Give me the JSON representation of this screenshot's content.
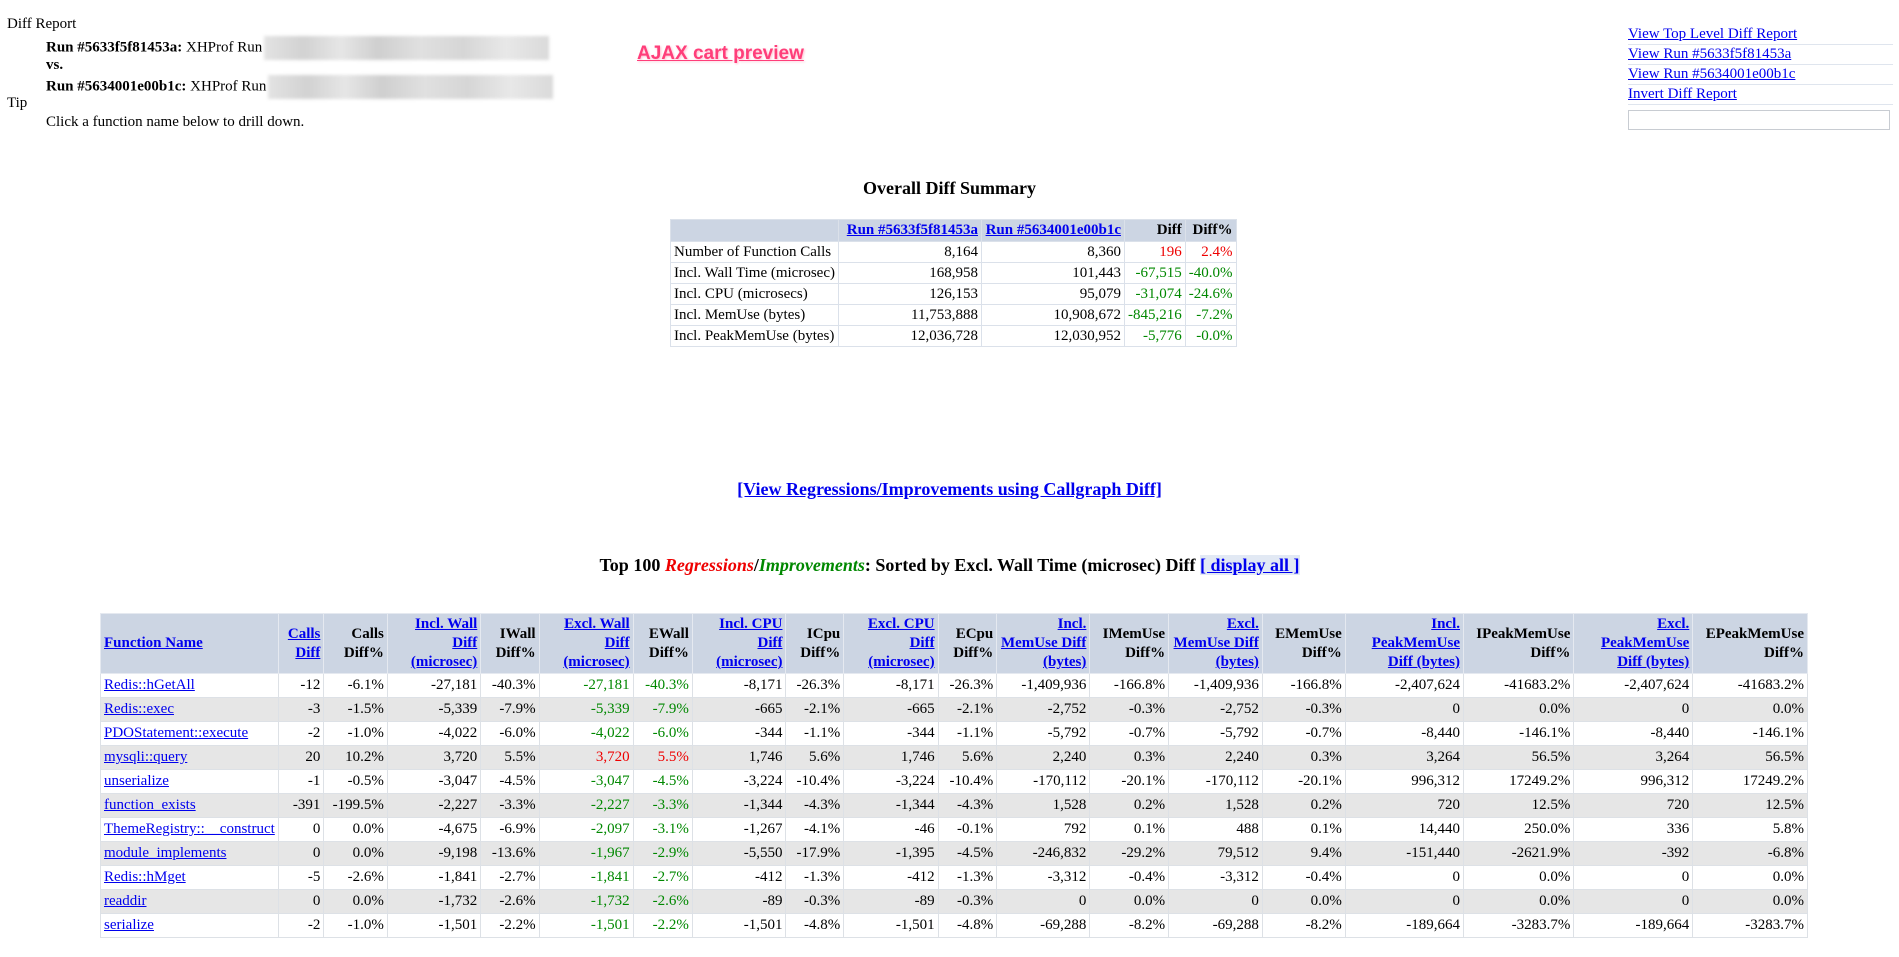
{
  "header": {
    "title": "Diff Report",
    "run1_label": "Run #5633f5f81453a:",
    "run1_desc": "XHProf Run",
    "vs": "vs.",
    "run2_label": "Run #5634001e00b1c:",
    "run2_desc": "XHProf Run",
    "tip_label": "Tip",
    "tip_text": "Click a function name below to drill down."
  },
  "ajax_link": "AJAX cart preview",
  "right_links": [
    "View Top Level Diff Report",
    "View Run #5633f5f81453a",
    "View Run #5634001e00b1c",
    "Invert Diff Report"
  ],
  "summary": {
    "title": "Overall Diff Summary",
    "col_run1": "Run #5633f5f81453a",
    "col_run2": "Run #5634001e00b1c",
    "col_diff": "Diff",
    "col_diffpct": "Diff%",
    "rows": [
      {
        "label": "Number of Function Calls",
        "run1": "8,164",
        "run2": "8,360",
        "diff": "196",
        "pct": "2.4%",
        "color": "#ee0000"
      },
      {
        "label": "Incl. Wall Time (microsec)",
        "run1": "168,958",
        "run2": "101,443",
        "diff": "-67,515",
        "pct": "-40.0%",
        "color": "#008800"
      },
      {
        "label": "Incl. CPU (microsecs)",
        "run1": "126,153",
        "run2": "95,079",
        "diff": "-31,074",
        "pct": "-24.6%",
        "color": "#008800"
      },
      {
        "label": "Incl. MemUse (bytes)",
        "run1": "11,753,888",
        "run2": "10,908,672",
        "diff": "-845,216",
        "pct": "-7.2%",
        "color": "#008800"
      },
      {
        "label": "Incl. PeakMemUse (bytes)",
        "run1": "12,036,728",
        "run2": "12,030,952",
        "diff": "-5,776",
        "pct": "-0.0%",
        "color": "#008800"
      }
    ]
  },
  "callgraph_link": "[View Regressions/Improvements using Callgraph Diff]",
  "top_heading": {
    "prefix": "Top 100",
    "regressions": "Regressions",
    "slash": "/",
    "improvements": "Improvements",
    "suffix": ": Sorted by Excl. Wall Time (microsec) Diff",
    "display_all": "[ display all ]"
  },
  "main_table": {
    "columns": [
      {
        "label": "Function Name",
        "link": true
      },
      {
        "label": "Calls Diff",
        "link": true
      },
      {
        "label": "Calls Diff%",
        "link": false
      },
      {
        "label": "Incl. Wall Diff (microsec)",
        "link": true
      },
      {
        "label": "IWall Diff%",
        "link": false
      },
      {
        "label": "Excl. Wall Diff (microsec)",
        "link": true
      },
      {
        "label": "EWall Diff%",
        "link": false
      },
      {
        "label": "Incl. CPU Diff (microsec)",
        "link": true
      },
      {
        "label": "ICpu Diff%",
        "link": false
      },
      {
        "label": "Excl. CPU Diff (microsec)",
        "link": true
      },
      {
        "label": "ECpu Diff%",
        "link": false
      },
      {
        "label": "Incl. MemUse Diff (bytes)",
        "link": true
      },
      {
        "label": "IMemUse Diff%",
        "link": false
      },
      {
        "label": "Excl. MemUse Diff (bytes)",
        "link": true
      },
      {
        "label": "EMemUse Diff%",
        "link": false
      },
      {
        "label": "Incl. PeakMemUse Diff (bytes)",
        "link": true
      },
      {
        "label": "IPeakMemUse Diff%",
        "link": false
      },
      {
        "label": "Excl. PeakMemUse Diff (bytes)",
        "link": true
      },
      {
        "label": "EPeakMemUse Diff%",
        "link": false
      }
    ],
    "rows": [
      {
        "fn": "Redis::hGetAll",
        "highlight": "#008800",
        "cells": [
          "-12",
          "-6.1%",
          "-27,181",
          "-40.3%",
          "-27,181",
          "-40.3%",
          "-8,171",
          "-26.3%",
          "-8,171",
          "-26.3%",
          "-1,409,936",
          "-166.8%",
          "-1,409,936",
          "-166.8%",
          "-2,407,624",
          "-41683.2%",
          "-2,407,624",
          "-41683.2%"
        ]
      },
      {
        "fn": "Redis::exec",
        "highlight": "#008800",
        "cells": [
          "-3",
          "-1.5%",
          "-5,339",
          "-7.9%",
          "-5,339",
          "-7.9%",
          "-665",
          "-2.1%",
          "-665",
          "-2.1%",
          "-2,752",
          "-0.3%",
          "-2,752",
          "-0.3%",
          "0",
          "0.0%",
          "0",
          "0.0%"
        ]
      },
      {
        "fn": "PDOStatement::execute",
        "highlight": "#008800",
        "cells": [
          "-2",
          "-1.0%",
          "-4,022",
          "-6.0%",
          "-4,022",
          "-6.0%",
          "-344",
          "-1.1%",
          "-344",
          "-1.1%",
          "-5,792",
          "-0.7%",
          "-5,792",
          "-0.7%",
          "-8,440",
          "-146.1%",
          "-8,440",
          "-146.1%"
        ]
      },
      {
        "fn": "mysqli::query",
        "highlight": "#ee0000",
        "cells": [
          "20",
          "10.2%",
          "3,720",
          "5.5%",
          "3,720",
          "5.5%",
          "1,746",
          "5.6%",
          "1,746",
          "5.6%",
          "2,240",
          "0.3%",
          "2,240",
          "0.3%",
          "3,264",
          "56.5%",
          "3,264",
          "56.5%"
        ]
      },
      {
        "fn": "unserialize",
        "highlight": "#008800",
        "cells": [
          "-1",
          "-0.5%",
          "-3,047",
          "-4.5%",
          "-3,047",
          "-4.5%",
          "-3,224",
          "-10.4%",
          "-3,224",
          "-10.4%",
          "-170,112",
          "-20.1%",
          "-170,112",
          "-20.1%",
          "996,312",
          "17249.2%",
          "996,312",
          "17249.2%"
        ]
      },
      {
        "fn": "function_exists",
        "highlight": "#008800",
        "cells": [
          "-391",
          "-199.5%",
          "-2,227",
          "-3.3%",
          "-2,227",
          "-3.3%",
          "-1,344",
          "-4.3%",
          "-1,344",
          "-4.3%",
          "1,528",
          "0.2%",
          "1,528",
          "0.2%",
          "720",
          "12.5%",
          "720",
          "12.5%"
        ]
      },
      {
        "fn": "ThemeRegistry::__construct",
        "highlight": "#008800",
        "cells": [
          "0",
          "0.0%",
          "-4,675",
          "-6.9%",
          "-2,097",
          "-3.1%",
          "-1,267",
          "-4.1%",
          "-46",
          "-0.1%",
          "792",
          "0.1%",
          "488",
          "0.1%",
          "14,440",
          "250.0%",
          "336",
          "5.8%"
        ]
      },
      {
        "fn": "module_implements",
        "highlight": "#008800",
        "cells": [
          "0",
          "0.0%",
          "-9,198",
          "-13.6%",
          "-1,967",
          "-2.9%",
          "-5,550",
          "-17.9%",
          "-1,395",
          "-4.5%",
          "-246,832",
          "-29.2%",
          "79,512",
          "9.4%",
          "-151,440",
          "-2621.9%",
          "-392",
          "-6.8%"
        ]
      },
      {
        "fn": "Redis::hMget",
        "highlight": "#008800",
        "cells": [
          "-5",
          "-2.6%",
          "-1,841",
          "-2.7%",
          "-1,841",
          "-2.7%",
          "-412",
          "-1.3%",
          "-412",
          "-1.3%",
          "-3,312",
          "-0.4%",
          "-3,312",
          "-0.4%",
          "0",
          "0.0%",
          "0",
          "0.0%"
        ]
      },
      {
        "fn": "readdir",
        "highlight": "#008800",
        "cells": [
          "0",
          "0.0%",
          "-1,732",
          "-2.6%",
          "-1,732",
          "-2.6%",
          "-89",
          "-0.3%",
          "-89",
          "-0.3%",
          "0",
          "0.0%",
          "0",
          "0.0%",
          "0",
          "0.0%",
          "0",
          "0.0%"
        ]
      },
      {
        "fn": "serialize",
        "highlight": "#008800",
        "cells": [
          "-2",
          "-1.0%",
          "-1,501",
          "-2.2%",
          "-1,501",
          "-2.2%",
          "-1,501",
          "-4.8%",
          "-1,501",
          "-4.8%",
          "-69,288",
          "-8.2%",
          "-69,288",
          "-8.2%",
          "-189,664",
          "-3283.7%",
          "-189,664",
          "-3283.7%"
        ]
      }
    ]
  }
}
